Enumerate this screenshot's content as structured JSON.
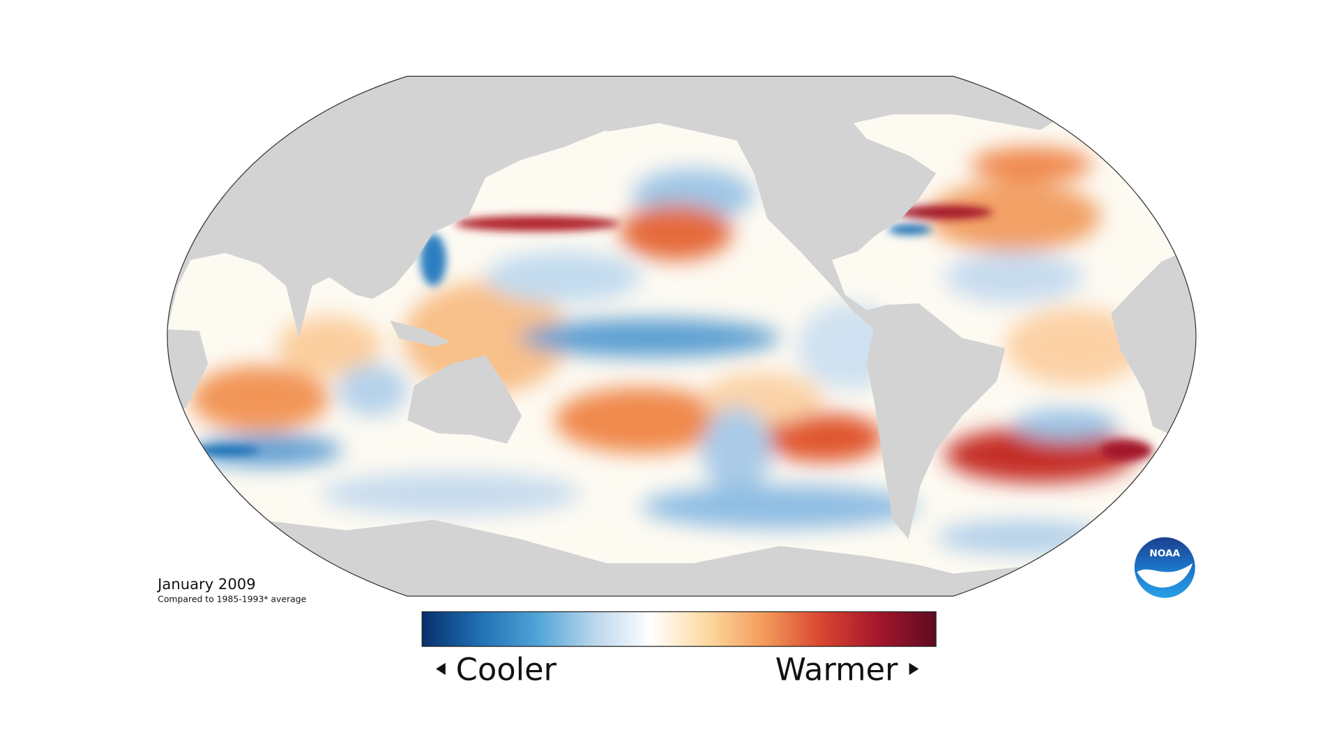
{
  "caption": {
    "date": "January 2009",
    "note": "Compared to 1985-1993* average"
  },
  "legend": {
    "low": "Cooler",
    "high": "Warmer",
    "colors": [
      "#08306b",
      "#1f6fb4",
      "#4fa3d6",
      "#b8d6ec",
      "#ffffff",
      "#fdd9a0",
      "#f39a5a",
      "#d9452f",
      "#a3172b",
      "#5e0a22"
    ]
  },
  "logo": {
    "text": "NOAA"
  }
}
